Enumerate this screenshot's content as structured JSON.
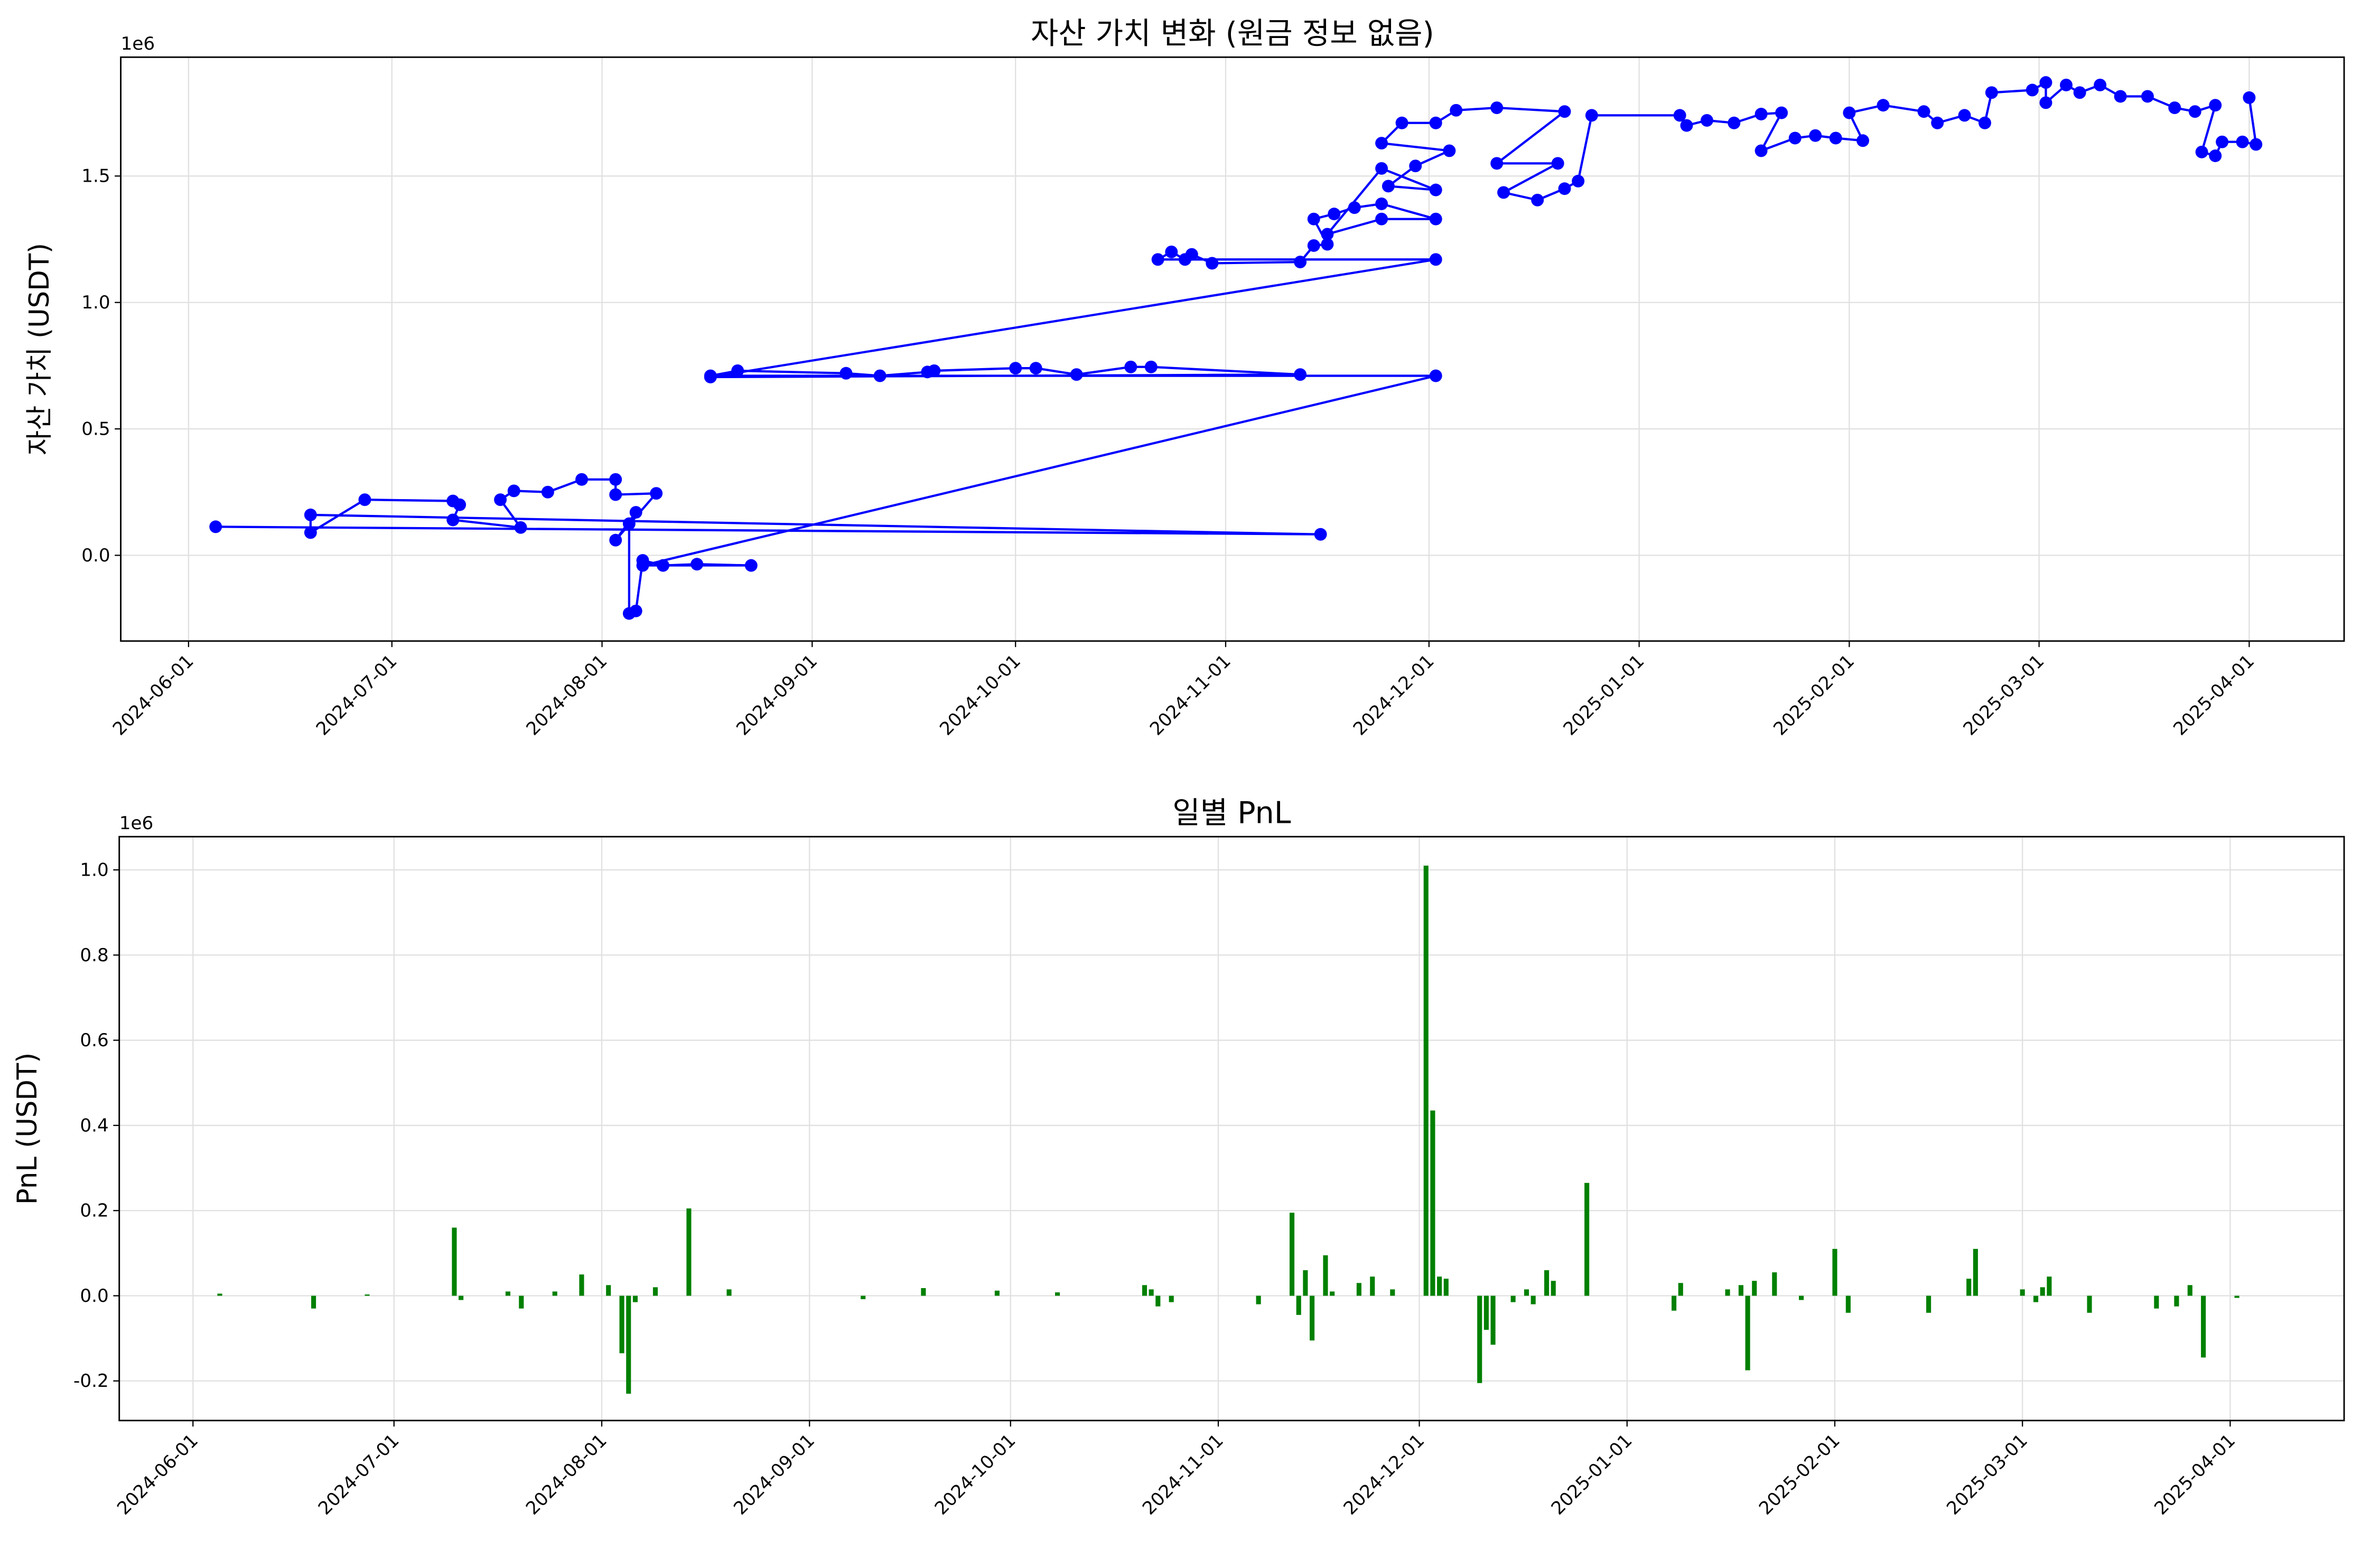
{
  "chart_data": [
    {
      "type": "line",
      "title": "자산 가치 변화 (원금 정보 없음)",
      "ylabel": "자산 가치 (USDT)",
      "y_offset_label": "1e6",
      "color": "#0000ff",
      "markers": true,
      "grid": true,
      "x": [
        "2024-06-05",
        "2024-11-15",
        "2024-06-19",
        "2024-06-19",
        "2024-06-27",
        "2024-07-10",
        "2024-07-11",
        "2024-07-10",
        "2024-07-20",
        "2024-07-17",
        "2024-07-19",
        "2024-07-24",
        "2024-07-29",
        "2024-08-03",
        "2024-08-03",
        "2024-08-09",
        "2024-08-03",
        "2024-08-06",
        "2024-08-05",
        "2024-08-05",
        "2024-08-06",
        "2024-08-07",
        "2024-08-10",
        "2024-08-15",
        "2024-08-23",
        "2024-08-07",
        "2024-12-02",
        "2024-08-17",
        "2024-08-21",
        "2024-09-06",
        "2024-09-11",
        "2024-09-18",
        "2024-09-19",
        "2024-10-01",
        "2024-10-04",
        "2024-10-10",
        "2024-10-18",
        "2024-10-21",
        "2024-11-12",
        "2024-08-17",
        "2024-12-02",
        "2024-10-22",
        "2024-10-24",
        "2024-10-26",
        "2024-10-27",
        "2024-10-30",
        "2024-11-12",
        "2024-11-14",
        "2024-11-16",
        "2024-11-14",
        "2024-11-17",
        "2024-11-20",
        "2024-11-24",
        "2024-12-02",
        "2024-11-24",
        "2024-11-16",
        "2024-11-24",
        "2024-12-02",
        "2024-11-25",
        "2024-11-29",
        "2024-12-04",
        "2024-11-24",
        "2024-11-27",
        "2024-12-02",
        "2024-12-05",
        "2024-12-11",
        "2024-12-21",
        "2024-12-11",
        "2024-12-20",
        "2024-12-12",
        "2024-12-17",
        "2024-12-21",
        "2024-12-23",
        "2024-12-25",
        "2025-01-07",
        "2025-01-08",
        "2025-01-11",
        "2025-01-15",
        "2025-01-19",
        "2025-01-22",
        "2025-01-19",
        "2025-01-24",
        "2025-01-27",
        "2025-01-30",
        "2025-02-03",
        "2025-02-01",
        "2025-02-06",
        "2025-02-12",
        "2025-02-14",
        "2025-02-18",
        "2025-02-21",
        "2025-02-22",
        "2025-02-28",
        "2025-03-02",
        "2025-03-02",
        "2025-03-05",
        "2025-03-07",
        "2025-03-10",
        "2025-03-13",
        "2025-03-17",
        "2025-03-21",
        "2025-03-24",
        "2025-03-27",
        "2025-03-25",
        "2025-03-27",
        "2025-03-28",
        "2025-03-31",
        "2025-04-02",
        "2025-04-01"
      ],
      "values": [
        0.113,
        0.083,
        0.16,
        0.09,
        0.22,
        0.215,
        0.2,
        0.14,
        0.11,
        0.22,
        0.255,
        0.25,
        0.3,
        0.3,
        0.24,
        0.245,
        0.06,
        0.17,
        0.125,
        -0.23,
        -0.22,
        -0.02,
        -0.04,
        -0.035,
        -0.04,
        -0.04,
        0.71,
        0.71,
        0.73,
        0.72,
        0.71,
        0.725,
        0.73,
        0.74,
        0.74,
        0.715,
        0.745,
        0.745,
        0.715,
        0.705,
        1.17,
        1.17,
        1.2,
        1.17,
        1.19,
        1.155,
        1.16,
        1.225,
        1.23,
        1.33,
        1.35,
        1.375,
        1.39,
        1.33,
        1.33,
        1.27,
        1.53,
        1.445,
        1.46,
        1.54,
        1.6,
        1.63,
        1.71,
        1.71,
        1.76,
        1.77,
        1.755,
        1.55,
        1.55,
        1.435,
        1.405,
        1.45,
        1.48,
        1.74,
        1.74,
        1.7,
        1.72,
        1.71,
        1.745,
        1.75,
        1.6,
        1.65,
        1.66,
        1.65,
        1.64,
        1.75,
        1.78,
        1.755,
        1.71,
        1.74,
        1.71,
        1.83,
        1.84,
        1.87,
        1.79,
        1.86,
        1.83,
        1.86,
        1.815,
        1.815,
        1.77,
        1.755,
        1.78,
        1.595,
        1.58,
        1.635,
        1.635,
        1.625,
        1.81
      ],
      "xlim": [
        "2024-05-22",
        "2025-04-15"
      ],
      "xticks": [
        "2024-06-01",
        "2024-07-01",
        "2024-08-01",
        "2024-09-01",
        "2024-10-01",
        "2024-11-01",
        "2024-12-01",
        "2025-01-01",
        "2025-02-01",
        "2025-03-01",
        "2025-04-01"
      ],
      "ylim": [
        -0.339,
        1.97
      ],
      "yticks": [
        {
          "value": 0,
          "label": "0.0"
        },
        0.5,
        {
          "value": 1,
          "label": "1.0"
        },
        1.5
      ]
    },
    {
      "type": "bar",
      "title": "일별 PnL",
      "ylabel": "PnL (USDT)",
      "y_offset_label": "1e6",
      "color": "#008000",
      "grid": true,
      "x": [
        "2024-06-05",
        "2024-06-19",
        "2024-06-27",
        "2024-07-10",
        "2024-07-11",
        "2024-07-18",
        "2024-07-20",
        "2024-07-25",
        "2024-07-29",
        "2024-08-02",
        "2024-08-04",
        "2024-08-05",
        "2024-08-06",
        "2024-08-09",
        "2024-08-14",
        "2024-08-20",
        "2024-09-09",
        "2024-09-18",
        "2024-09-29",
        "2024-10-08",
        "2024-10-21",
        "2024-10-22",
        "2024-10-23",
        "2024-10-25",
        "2024-11-07",
        "2024-11-12",
        "2024-11-13",
        "2024-11-14",
        "2024-11-15",
        "2024-11-17",
        "2024-11-18",
        "2024-11-22",
        "2024-11-24",
        "2024-11-27",
        "2024-12-02",
        "2024-12-03",
        "2024-12-04",
        "2024-12-05",
        "2024-12-10",
        "2024-12-11",
        "2024-12-12",
        "2024-12-15",
        "2024-12-17",
        "2024-12-18",
        "2024-12-20",
        "2024-12-21",
        "2024-12-26",
        "2025-01-08",
        "2025-01-09",
        "2025-01-16",
        "2025-01-18",
        "2025-01-19",
        "2025-01-20",
        "2025-01-23",
        "2025-01-27",
        "2025-02-01",
        "2025-02-03",
        "2025-02-15",
        "2025-02-21",
        "2025-02-22",
        "2025-03-01",
        "2025-03-03",
        "2025-03-04",
        "2025-03-05",
        "2025-03-11",
        "2025-03-21",
        "2025-03-24",
        "2025-03-26",
        "2025-03-28",
        "2025-04-02"
      ],
      "values": [
        0.005,
        -0.03,
        0.003,
        0.16,
        -0.01,
        0.01,
        -0.03,
        0.01,
        0.05,
        0.025,
        -0.135,
        -0.23,
        -0.015,
        0.02,
        0.205,
        0.015,
        -0.008,
        0.018,
        0.012,
        0.008,
        0.025,
        0.015,
        -0.025,
        -0.015,
        -0.02,
        0.195,
        -0.045,
        0.06,
        -0.105,
        0.095,
        0.01,
        0.03,
        0.045,
        0.015,
        1.01,
        0.435,
        0.045,
        0.04,
        -0.205,
        -0.08,
        -0.115,
        -0.015,
        0.015,
        -0.02,
        0.06,
        0.035,
        0.265,
        -0.035,
        0.03,
        0.015,
        0.025,
        -0.175,
        0.035,
        0.055,
        -0.01,
        0.11,
        -0.04,
        -0.04,
        0.04,
        0.11,
        0.015,
        -0.015,
        0.02,
        0.045,
        -0.04,
        -0.03,
        -0.025,
        0.025,
        -0.145,
        -0.005
      ],
      "xlim": [
        "2024-05-21",
        "2025-04-18"
      ],
      "xticks": [
        "2024-06-01",
        "2024-07-01",
        "2024-08-01",
        "2024-09-01",
        "2024-10-01",
        "2024-11-01",
        "2024-12-01",
        "2025-01-01",
        "2025-02-01",
        "2025-03-01",
        "2025-04-01"
      ],
      "ylim": [
        -0.293,
        1.078
      ],
      "yticks": [
        -0.2,
        {
          "value": 0,
          "label": "0.0"
        },
        0.2,
        0.4,
        0.6,
        0.8,
        {
          "value": 1,
          "label": "1.0"
        }
      ]
    }
  ]
}
